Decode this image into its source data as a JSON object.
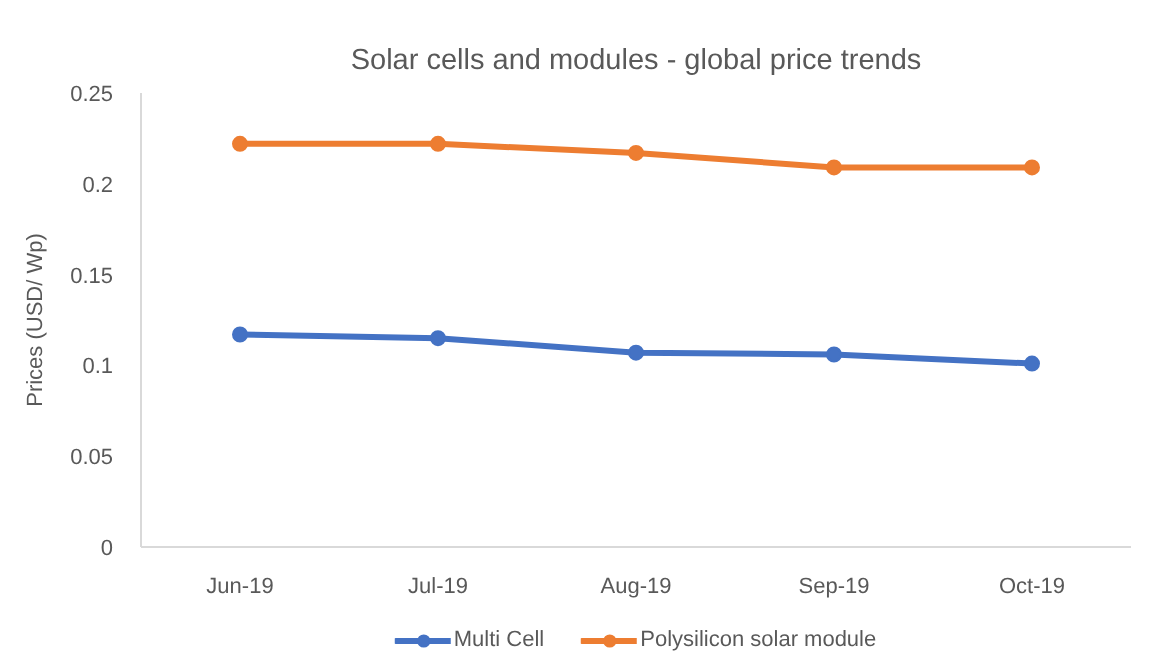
{
  "chart_data": {
    "type": "line",
    "title": "Solar cells and modules - global price trends",
    "ylabel": "Prices (USD/ Wp)",
    "categories": [
      "Jun-19",
      "Jul-19",
      "Aug-19",
      "Sep-19",
      "Oct-19"
    ],
    "series": [
      {
        "name": "Multi Cell",
        "color": "#4472c4",
        "values": [
          0.117,
          0.115,
          0.107,
          0.106,
          0.101
        ]
      },
      {
        "name": "Polysilicon solar module",
        "color": "#ed7d31",
        "values": [
          0.222,
          0.222,
          0.217,
          0.209,
          0.209
        ]
      }
    ],
    "ylim": [
      0,
      0.25
    ],
    "yticks": [
      0,
      0.05,
      0.1,
      0.15,
      0.2,
      0.25
    ],
    "grid": false,
    "legend": "bottom",
    "marker": "circle",
    "line_style": "solid"
  }
}
